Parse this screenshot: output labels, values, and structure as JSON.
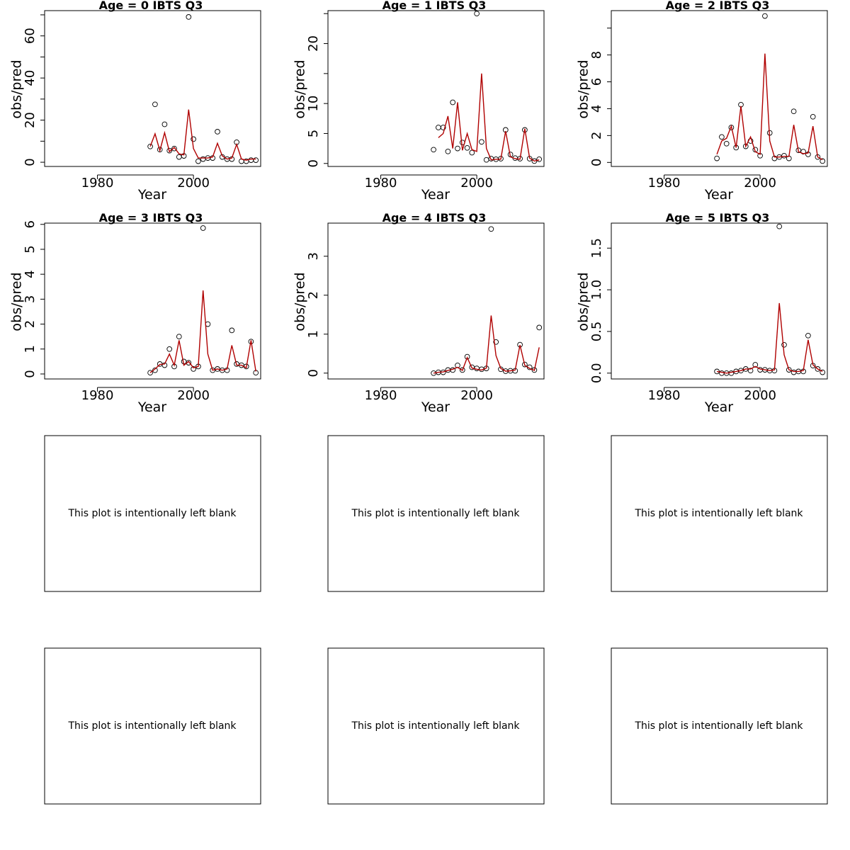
{
  "chart_data": [
    {
      "type": "line",
      "title": "Age =  0 IBTS Q3",
      "xlabel": "Year",
      "ylabel": "obs/pred",
      "xlim": [
        1969,
        2014
      ],
      "ylim": [
        -2,
        72
      ],
      "xticks": [
        1980,
        2000
      ],
      "xtick_labels": [
        "1980",
        "2000"
      ],
      "yticks": [
        0,
        20,
        40,
        60
      ],
      "ytick_labels": [
        "0",
        "20",
        "40",
        "60"
      ],
      "ytick_minor": [
        10,
        30,
        50,
        70
      ],
      "series": [
        {
          "name": "",
          "style": "points",
          "x": [
            1991,
            1992,
            1993,
            1994,
            1995,
            1996,
            1997,
            1998,
            1999,
            2000,
            2001,
            2002,
            2003,
            2004,
            2005,
            2006,
            2007,
            2008,
            2009,
            2010,
            2011,
            2012,
            2013
          ],
          "y": [
            7.5,
            27.5,
            6,
            18,
            5.5,
            6.5,
            2.5,
            3,
            69,
            11,
            0.5,
            1.5,
            2,
            2,
            14.5,
            2.5,
            1.5,
            1.5,
            9.5,
            0.5,
            0.5,
            1,
            1
          ]
        },
        {
          "name": "",
          "style": "line",
          "x": [
            1991,
            1992,
            1993,
            1994,
            1995,
            1996,
            1997,
            1998,
            1999,
            2000,
            2001,
            2002,
            2003,
            2004,
            2005,
            2006,
            2007,
            2008,
            2009,
            2010,
            2011,
            2012,
            2013
          ],
          "y": [
            7.5,
            13.5,
            5.5,
            14,
            5,
            7,
            4,
            3.5,
            25,
            6.5,
            2,
            2,
            2,
            2.5,
            9,
            3,
            1.5,
            2,
            8.5,
            1.5,
            1,
            1.5,
            1.5
          ]
        }
      ]
    },
    {
      "type": "line",
      "title": "Age =  1 IBTS Q3",
      "xlabel": "Year",
      "ylabel": "obs/pred",
      "xlim": [
        1969,
        2014
      ],
      "ylim": [
        -0.5,
        25.5
      ],
      "xticks": [
        1980,
        2000
      ],
      "xtick_labels": [
        "1980",
        "2000"
      ],
      "yticks": [
        0,
        5,
        10,
        20
      ],
      "ytick_labels": [
        "0",
        "5",
        "10",
        "20"
      ],
      "ytick_minor": [
        15,
        25
      ],
      "series": [
        {
          "name": "",
          "style": "points",
          "x": [
            1991,
            1992,
            1993,
            1994,
            1995,
            1996,
            1997,
            1998,
            1999,
            2000,
            2001,
            2002,
            2003,
            2004,
            2005,
            2006,
            2007,
            2008,
            2009,
            2010,
            2011,
            2012,
            2013
          ],
          "y": [
            2.3,
            6,
            6,
            2,
            10.2,
            2.5,
            3.5,
            2.6,
            1.8,
            25,
            3.6,
            0.6,
            0.8,
            0.7,
            0.8,
            5.6,
            1.5,
            0.9,
            0.8,
            5.6,
            0.8,
            0.4,
            0.7
          ]
        },
        {
          "name": "",
          "style": "line",
          "x": [
            1992,
            1993,
            1994,
            1995,
            1996,
            1997,
            1998,
            1999,
            2000,
            2001,
            2002,
            2003,
            2004,
            2005,
            2006,
            2007,
            2008,
            2009,
            2010,
            2011,
            2012,
            2013
          ],
          "y": [
            4.3,
            5,
            7.9,
            2.5,
            10.2,
            2.2,
            5,
            2.3,
            2,
            15,
            2.5,
            0.6,
            0.7,
            0.7,
            5.4,
            1.1,
            0.8,
            0.7,
            5.8,
            0.9,
            0.4,
            0.6
          ]
        }
      ]
    },
    {
      "type": "line",
      "title": "Age =  2 IBTS Q3",
      "xlabel": "Year",
      "ylabel": "obs/pred",
      "xlim": [
        1969,
        2014
      ],
      "ylim": [
        -0.3,
        11.3
      ],
      "xticks": [
        1980,
        2000
      ],
      "xtick_labels": [
        "1980",
        "2000"
      ],
      "yticks": [
        0,
        2,
        4,
        6,
        8
      ],
      "ytick_labels": [
        "0",
        "2",
        "4",
        "6",
        "8"
      ],
      "ytick_minor": [
        10
      ],
      "series": [
        {
          "name": "",
          "style": "points",
          "x": [
            1991,
            1992,
            1993,
            1994,
            1995,
            1996,
            1997,
            1998,
            1999,
            2000,
            2001,
            2002,
            2003,
            2004,
            2005,
            2006,
            2007,
            2008,
            2009,
            2010,
            2011,
            2012,
            2013
          ],
          "y": [
            0.3,
            1.9,
            1.4,
            2.6,
            1.1,
            4.3,
            1.2,
            1.6,
            0.95,
            0.5,
            10.9,
            2.2,
            0.3,
            0.4,
            0.5,
            0.3,
            3.8,
            0.9,
            0.8,
            0.6,
            3.4,
            0.4,
            0.1
          ]
        },
        {
          "name": "",
          "style": "line",
          "x": [
            1991,
            1992,
            1993,
            1994,
            1995,
            1996,
            1997,
            1998,
            1999,
            2000,
            2001,
            2002,
            2003,
            2004,
            2005,
            2006,
            2007,
            2008,
            2009,
            2010,
            2011,
            2012,
            2013
          ],
          "y": [
            0.6,
            1.6,
            1.8,
            2.7,
            1.1,
            4.2,
            1.2,
            1.9,
            0.8,
            0.6,
            8.1,
            1.6,
            0.4,
            0.4,
            0.45,
            0.45,
            2.8,
            0.8,
            0.65,
            0.7,
            2.7,
            0.4,
            0.2
          ]
        }
      ]
    },
    {
      "type": "line",
      "title": "Age =  3 IBTS Q3",
      "xlabel": "Year",
      "ylabel": "obs/pred",
      "xlim": [
        1969,
        2014
      ],
      "ylim": [
        -0.2,
        6.05
      ],
      "xticks": [
        1980,
        2000
      ],
      "xtick_labels": [
        "1980",
        "2000"
      ],
      "yticks": [
        0,
        1,
        2,
        3,
        4,
        5,
        6
      ],
      "ytick_labels": [
        "0",
        "1",
        "2",
        "3",
        "4",
        "5",
        "6"
      ],
      "ytick_minor": [],
      "series": [
        {
          "name": "",
          "style": "points",
          "x": [
            1991,
            1992,
            1993,
            1994,
            1995,
            1996,
            1997,
            1998,
            1999,
            2000,
            2001,
            2002,
            2003,
            2004,
            2005,
            2006,
            2007,
            2008,
            2009,
            2010,
            2011,
            2012,
            2013
          ],
          "y": [
            0.05,
            0.15,
            0.4,
            0.35,
            1,
            0.3,
            1.5,
            0.5,
            0.45,
            0.2,
            0.3,
            5.85,
            2,
            0.15,
            0.2,
            0.15,
            0.15,
            1.75,
            0.4,
            0.35,
            0.3,
            1.3,
            0.05
          ]
        },
        {
          "name": "",
          "style": "line",
          "x": [
            1991,
            1992,
            1993,
            1994,
            1995,
            1996,
            1997,
            1998,
            1999,
            2000,
            2001,
            2002,
            2003,
            2004,
            2005,
            2006,
            2007,
            2008,
            2009,
            2010,
            2011,
            2012,
            2013
          ],
          "y": [
            0.05,
            0.2,
            0.38,
            0.4,
            0.8,
            0.35,
            1.35,
            0.35,
            0.5,
            0.25,
            0.3,
            3.35,
            0.8,
            0.15,
            0.2,
            0.15,
            0.2,
            1.15,
            0.35,
            0.35,
            0.25,
            1.35,
            0.1
          ]
        }
      ]
    },
    {
      "type": "line",
      "title": "Age =  4 IBTS Q3",
      "xlabel": "Year",
      "ylabel": "obs/pred",
      "xlim": [
        1969,
        2014
      ],
      "ylim": [
        -0.15,
        3.85
      ],
      "xticks": [
        1980,
        2000
      ],
      "xtick_labels": [
        "1980",
        "2000"
      ],
      "yticks": [
        0,
        1,
        2,
        3
      ],
      "ytick_labels": [
        "0",
        "1",
        "2",
        "3"
      ],
      "ytick_minor": [],
      "series": [
        {
          "name": "",
          "style": "points",
          "x": [
            1991,
            1992,
            1993,
            1994,
            1995,
            1996,
            1997,
            1998,
            1999,
            2000,
            2001,
            2002,
            2003,
            2004,
            2005,
            2006,
            2007,
            2008,
            2009,
            2010,
            2011,
            2012,
            2013
          ],
          "y": [
            0,
            0.02,
            0.02,
            0.08,
            0.08,
            0.2,
            0.08,
            0.42,
            0.15,
            0.12,
            0.1,
            0.12,
            3.7,
            0.8,
            0.1,
            0.05,
            0.06,
            0.06,
            0.73,
            0.22,
            0.15,
            0.08,
            1.17
          ]
        },
        {
          "name": "",
          "style": "line",
          "x": [
            1991,
            1992,
            1993,
            1994,
            1995,
            1996,
            1997,
            1998,
            1999,
            2000,
            2001,
            2002,
            2003,
            2004,
            2005,
            2006,
            2007,
            2008,
            2009,
            2010,
            2011,
            2012,
            2013
          ],
          "y": [
            0,
            0.02,
            0.03,
            0.07,
            0.1,
            0.15,
            0.07,
            0.4,
            0.13,
            0.1,
            0.08,
            0.13,
            1.48,
            0.45,
            0.12,
            0.05,
            0.06,
            0.08,
            0.72,
            0.2,
            0.12,
            0.07,
            0.66
          ]
        }
      ]
    },
    {
      "type": "line",
      "title": "Age =  5 IBTS Q3",
      "xlabel": "Year",
      "ylabel": "obs/pred",
      "xlim": [
        1969,
        2014
      ],
      "ylim": [
        -0.07,
        1.8
      ],
      "xticks": [
        1980,
        2000
      ],
      "xtick_labels": [
        "1980",
        "2000"
      ],
      "yticks": [
        0,
        0.5,
        1,
        1.5
      ],
      "ytick_labels": [
        "0.0",
        "0.5",
        "1.0",
        "1.5"
      ],
      "ytick_minor": [],
      "series": [
        {
          "name": "",
          "style": "points",
          "x": [
            1991,
            1992,
            1993,
            1994,
            1995,
            1996,
            1997,
            1998,
            1999,
            2000,
            2001,
            2002,
            2003,
            2004,
            2005,
            2006,
            2007,
            2008,
            2009,
            2010,
            2011,
            2012,
            2013
          ],
          "y": [
            0.02,
            0,
            0,
            0,
            0.02,
            0.03,
            0.05,
            0.03,
            0.1,
            0.04,
            0.04,
            0.03,
            0.03,
            1.76,
            0.34,
            0.04,
            0.01,
            0.02,
            0.02,
            0.45,
            0.09,
            0.05,
            0.01
          ]
        },
        {
          "name": "",
          "style": "line",
          "x": [
            1991,
            1992,
            1993,
            1994,
            1995,
            1996,
            1997,
            1998,
            1999,
            2000,
            2001,
            2002,
            2003,
            2004,
            2005,
            2006,
            2007,
            2008,
            2009,
            2010,
            2011,
            2012,
            2013
          ],
          "y": [
            0.02,
            0.01,
            0,
            0.01,
            0.02,
            0.03,
            0.05,
            0.05,
            0.08,
            0.05,
            0.04,
            0.03,
            0.04,
            0.84,
            0.22,
            0.04,
            0.02,
            0.02,
            0.03,
            0.4,
            0.1,
            0.05,
            0.02
          ]
        }
      ]
    }
  ],
  "blank_panels": [
    "This plot is intentionally left blank",
    "This plot is intentionally left blank",
    "This plot is intentionally left blank",
    "This plot is intentionally left blank",
    "This plot is intentionally left blank",
    "This plot is intentionally left blank"
  ],
  "colors": {
    "prediction_line": "#b00000",
    "observation_point": "#000000"
  }
}
